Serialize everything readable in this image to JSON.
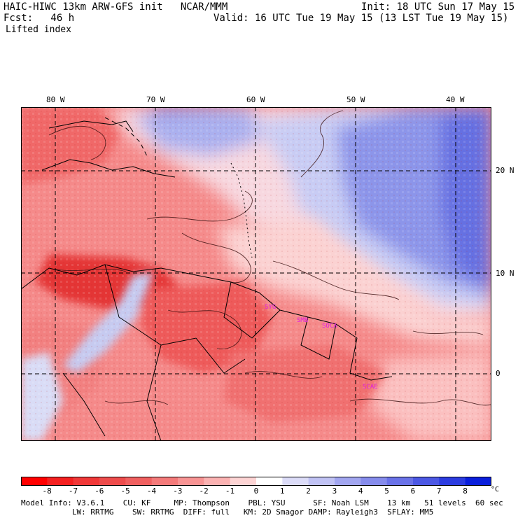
{
  "header": {
    "model_title": "HAIC-HIWC 13km ARW-GFS init   NCAR/MMM",
    "init_text": "Init: 18 UTC Sun 17 May 15",
    "fcst_text": "Fcst:   46 h",
    "valid_text": "Valid: 16 UTC Tue 19 May 15 (13 LST Tue 19 May 15)",
    "field_name": "Lifted index"
  },
  "map": {
    "lon_labels": [
      "80 W",
      "70 W",
      "60 W",
      "50 W",
      "40 W"
    ],
    "lat_labels": [
      "20 N",
      "10 N",
      "0"
    ],
    "station_labels": [
      "SYG",
      "SMB",
      "SOCA",
      "SCAE"
    ],
    "colors": {
      "neg_strong": "#e02828",
      "neg_mid": "#f06868",
      "neg_light": "#f8a8a8",
      "neutral": "#fde0e0",
      "pos_light": "#d8dcf8",
      "pos_mid": "#8c96ec",
      "pos_strong": "#5060e0",
      "station": "#e020e0"
    }
  },
  "colorbar": {
    "ticks": [
      "-8",
      "-7",
      "-6",
      "-5",
      "-4",
      "-3",
      "-2",
      "-1",
      "0",
      "1",
      "2",
      "3",
      "4",
      "5",
      "6",
      "7",
      "8"
    ],
    "unit": "°C",
    "colors": [
      "#ff0000",
      "#f42020",
      "#f03838",
      "#ee4c4c",
      "#f06060",
      "#f47a7a",
      "#f89494",
      "#fbb2b2",
      "#fdd4d4",
      "#ffffff",
      "#dcdcf8",
      "#c0c2f4",
      "#a2a6f0",
      "#868cec",
      "#6a72e8",
      "#4c58e4",
      "#2c3ce0",
      "#0a1fdc"
    ]
  },
  "footer": {
    "line1": "Model Info: V3.6.1    CU: KF     MP: Thompson    PBL: YSU      SF: Noah LSM    13 km   51 levels  60 sec",
    "line2": "           LW: RRTMG    SW: RRTMG  DIFF: full   KM: 2D Smagor DAMP: Rayleigh3  SFLAY: MM5"
  }
}
